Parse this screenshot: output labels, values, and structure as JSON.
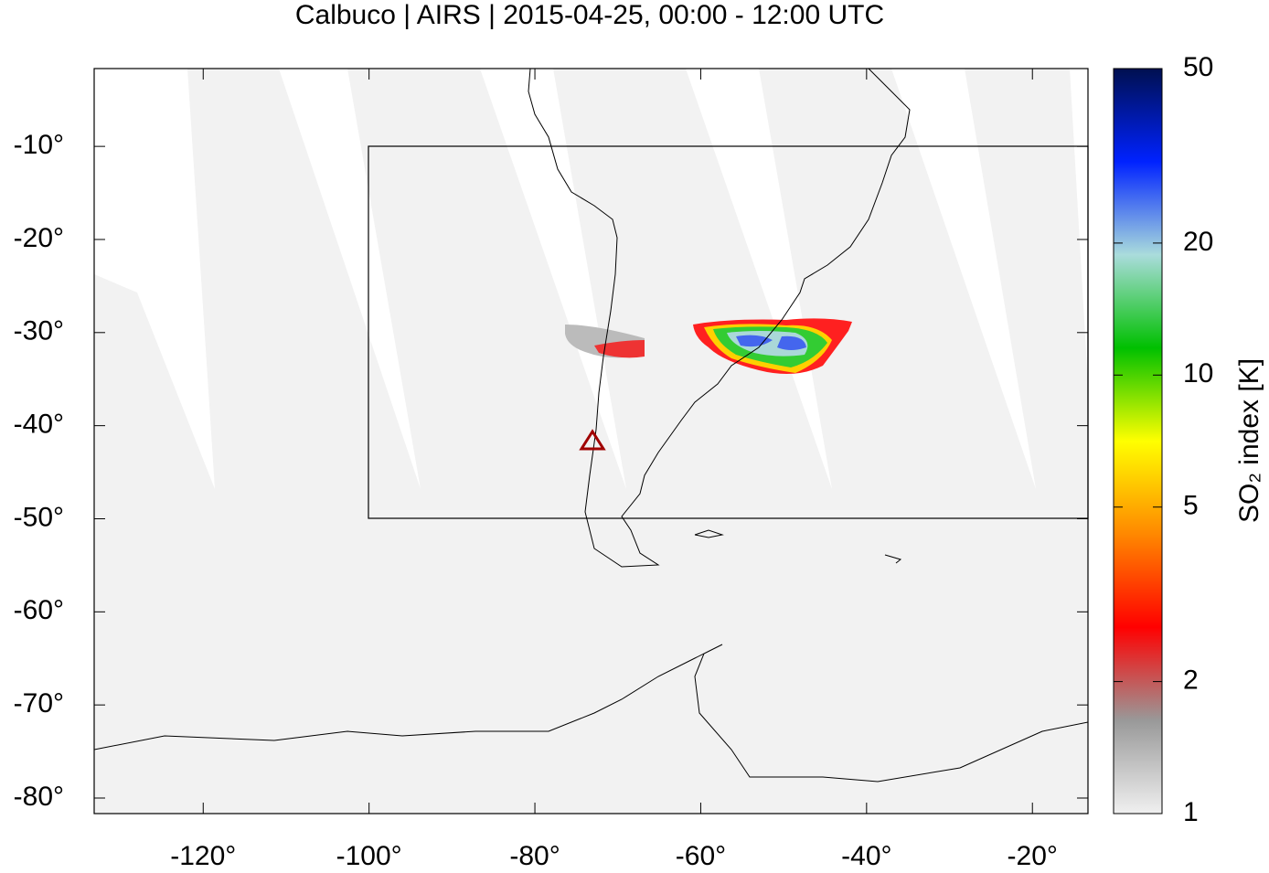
{
  "chart_data": {
    "type": "map",
    "title": "Calbuco | AIRS | 2015-04-25, 00:00 - 12:00 UTC",
    "xlim": [
      -133.15,
      -13.3
    ],
    "ylim": [
      -81.67,
      -1.64
    ],
    "xticks": [
      {
        "value": -120,
        "label": "-120°"
      },
      {
        "value": -100,
        "label": "-100°"
      },
      {
        "value": -80,
        "label": "-80°"
      },
      {
        "value": -60,
        "label": "-60°"
      },
      {
        "value": -40,
        "label": "-40°"
      },
      {
        "value": -20,
        "label": "-20°"
      }
    ],
    "yticks": [
      {
        "value": -10,
        "label": "-10°"
      },
      {
        "value": -20,
        "label": "-20°"
      },
      {
        "value": -30,
        "label": "-30°"
      },
      {
        "value": -40,
        "label": "-40°"
      },
      {
        "value": -50,
        "label": "-50°"
      },
      {
        "value": -60,
        "label": "-60°"
      },
      {
        "value": -70,
        "label": "-70°"
      },
      {
        "value": -80,
        "label": "-80°"
      }
    ],
    "colorbar": {
      "label": "SO₂ index [K]",
      "lim": [
        1,
        50
      ],
      "log": true,
      "ticks": [
        1,
        2,
        5,
        10,
        20,
        50
      ],
      "colors": [
        "#f0f0f0",
        "#999999",
        "#ff0000",
        "#ff8800",
        "#ffff00",
        "#00c000",
        "#aadcdc",
        "#0022ff",
        "#001050"
      ]
    }
  }
}
